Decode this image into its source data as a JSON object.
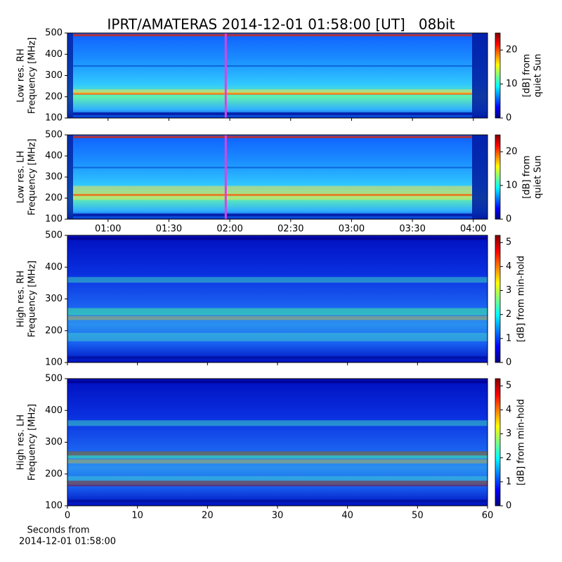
{
  "chart_data": [
    {
      "type": "heatmap",
      "title": "IPRT/AMATERAS 2014-12-01 01:58:00 [UT]   08bit",
      "ylabel": [
        "Low res. RH",
        "Frequency [MHz]"
      ],
      "ylim": [
        100,
        500
      ],
      "yticks": [
        100,
        200,
        300,
        400,
        500
      ],
      "xlim": [
        40,
        247
      ],
      "cursor": 118,
      "colorbar_label": [
        "[dB] from",
        "quiet Sun"
      ],
      "clim": [
        0,
        25
      ],
      "cticks": [
        0,
        10,
        20
      ],
      "colormap": "jet"
    },
    {
      "type": "heatmap",
      "ylabel": [
        "Low res. LH",
        "Frequency [MHz]"
      ],
      "ylim": [
        100,
        500
      ],
      "yticks": [
        100,
        200,
        300,
        400,
        500
      ],
      "xlim": [
        40,
        247
      ],
      "cursor": 118,
      "xticks": [
        {
          "value": 60,
          "label": "01:00"
        },
        {
          "value": 90,
          "label": "01:30"
        },
        {
          "value": 120,
          "label": "02:00"
        },
        {
          "value": 150,
          "label": "02:30"
        },
        {
          "value": 180,
          "label": "03:00"
        },
        {
          "value": 210,
          "label": "03:30"
        },
        {
          "value": 240,
          "label": "04:00"
        }
      ],
      "colorbar_label": [
        "[dB] from",
        "quiet Sun"
      ],
      "clim": [
        0,
        25
      ],
      "cticks": [
        0,
        10,
        20
      ],
      "colormap": "jet"
    },
    {
      "type": "heatmap",
      "ylabel": [
        "High res. RH",
        "Frequency [MHz]"
      ],
      "ylim": [
        100,
        500
      ],
      "yticks": [
        100,
        200,
        300,
        400,
        500
      ],
      "xlim": [
        0,
        60
      ],
      "colorbar_label": [
        "[dB] from min-hold"
      ],
      "clim": [
        0,
        5.3
      ],
      "cticks": [
        0,
        1,
        2,
        3,
        4,
        5
      ],
      "colormap": "jet"
    },
    {
      "type": "heatmap",
      "ylabel": [
        "High res. LH",
        "Frequency [MHz]"
      ],
      "ylim": [
        100,
        500
      ],
      "yticks": [
        100,
        200,
        300,
        400,
        500
      ],
      "xlim": [
        0,
        60
      ],
      "xticks": [
        0,
        10,
        20,
        30,
        40,
        50,
        60
      ],
      "xlabel": [
        "Seconds from",
        "2014-12-01 01:58:00"
      ],
      "colorbar_label": [
        "[dB] from min-hold"
      ],
      "clim": [
        0,
        5.3
      ],
      "cticks": [
        0,
        1,
        2,
        3,
        4,
        5
      ],
      "colormap": "jet"
    }
  ]
}
